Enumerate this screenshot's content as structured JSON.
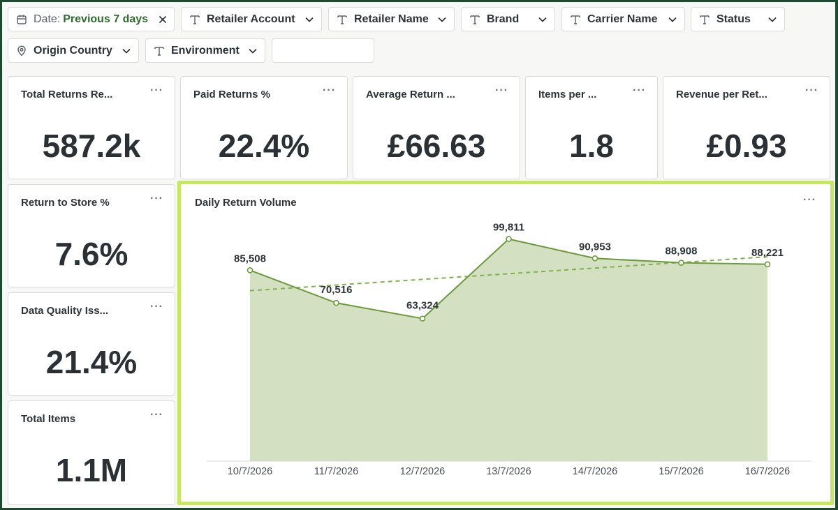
{
  "filters": {
    "date": {
      "prefix": "Date:",
      "value": "Previous 7 days"
    },
    "row1": [
      {
        "label": "Retailer Account",
        "icon": "text-type-icon"
      },
      {
        "label": "Retailer Name",
        "icon": "text-type-icon"
      },
      {
        "label": "Brand",
        "icon": "text-type-icon"
      },
      {
        "label": "Carrier Name",
        "icon": "text-type-icon"
      },
      {
        "label": "Status",
        "icon": "text-type-icon"
      }
    ],
    "origin_country": "Origin Country",
    "environment": "Environment",
    "blank_value": ""
  },
  "metrics": {
    "total_returns": {
      "title": "Total Returns Re...",
      "value": "587.2k"
    },
    "paid_returns": {
      "title": "Paid Returns %",
      "value": "22.4%"
    },
    "average_return": {
      "title": "Average Return ...",
      "value": "£66.63"
    },
    "items_per": {
      "title": "Items per ...",
      "value": "1.8"
    },
    "revenue_per": {
      "title": "Revenue per Ret...",
      "value": "£0.93"
    },
    "return_to_store": {
      "title": "Return to Store %",
      "value": "7.6%"
    },
    "data_quality": {
      "title": "Data Quality Iss...",
      "value": "21.4%"
    },
    "total_items": {
      "title": "Total Items",
      "value": "1.1M"
    }
  },
  "menu_glyph": "···",
  "chart_title": "Daily Return Volume",
  "chart_data": {
    "type": "area",
    "title": "Daily Return Volume",
    "categories": [
      "10/7/2026",
      "11/7/2026",
      "12/7/2026",
      "13/7/2026",
      "14/7/2026",
      "15/7/2026",
      "16/7/2026"
    ],
    "values": [
      85508,
      70516,
      63324,
      99811,
      90953,
      88908,
      88221
    ],
    "data_labels": [
      "85,508",
      "70,516",
      "63,324",
      "99,811",
      "90,953",
      "88,908",
      "88,221"
    ],
    "trendline": true,
    "grid": false,
    "colors": {
      "line": "#6b9a3a",
      "fill": "#d3e0c2",
      "trend": "#7fb24a",
      "accent_border": "#c6e85e"
    }
  }
}
